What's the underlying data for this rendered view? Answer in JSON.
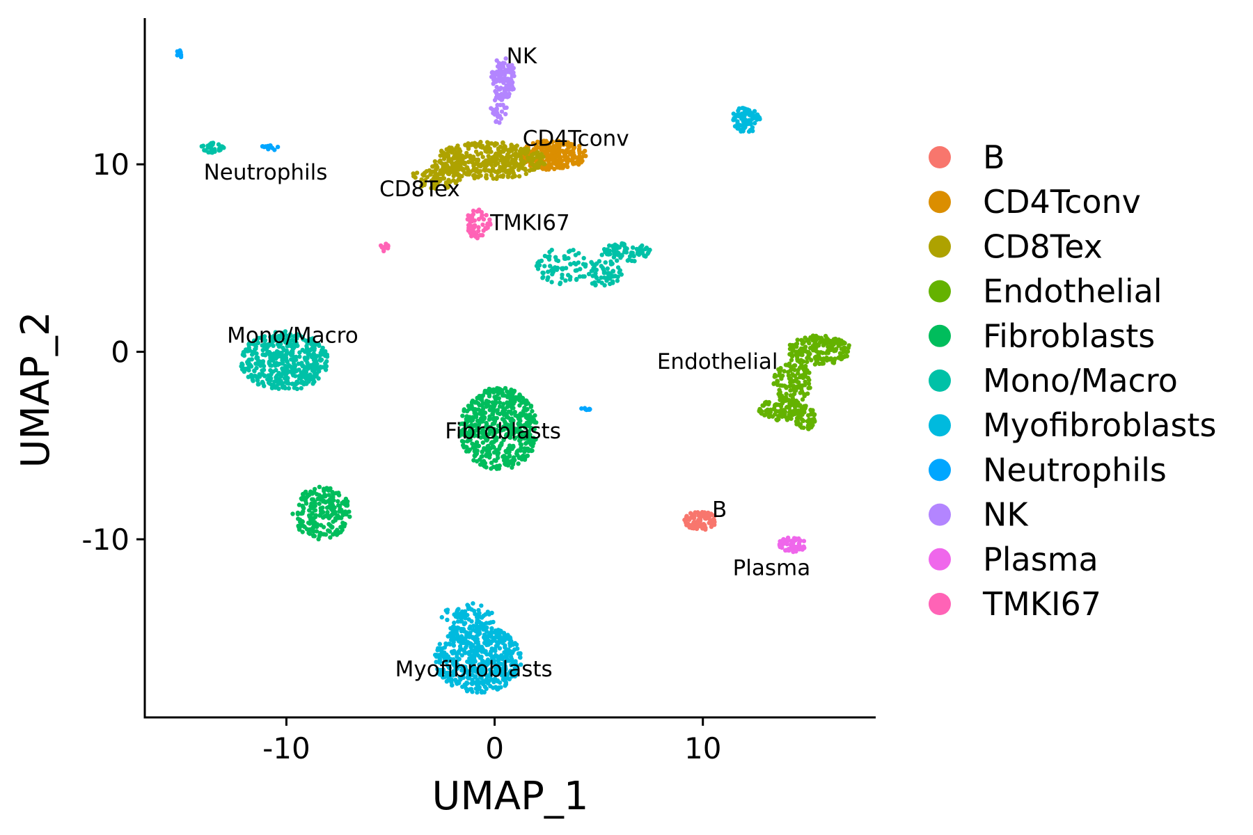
{
  "chart_data": {
    "type": "scatter",
    "title": "",
    "xlabel": "UMAP_1",
    "ylabel": "UMAP_2",
    "xlim": [
      -16.8,
      18.3
    ],
    "ylim": [
      -19.5,
      17.8
    ],
    "xticks": [
      -10,
      0,
      10
    ],
    "yticks": [
      -10,
      0,
      10
    ],
    "xtick_labels": [
      "-10",
      "0",
      "10"
    ],
    "ytick_labels": [
      "-10",
      "0",
      "10"
    ],
    "grid": false,
    "legend_placement": "right",
    "series": [
      {
        "name": "B",
        "color": "#F8766D",
        "clusters": [
          {
            "x": 9.9,
            "y": -9.0,
            "rx": 0.8,
            "ry": 0.5,
            "n": 90
          }
        ]
      },
      {
        "name": "CD4Tconv",
        "color": "#DB8E00",
        "clusters": [
          {
            "x": 2.8,
            "y": 10.5,
            "rx": 1.6,
            "ry": 0.8,
            "n": 260
          }
        ]
      },
      {
        "name": "CD8Tex",
        "color": "#AEA200",
        "clusters": [
          {
            "x": -0.3,
            "y": 10.2,
            "rx": 2.8,
            "ry": 1.0,
            "n": 420
          },
          {
            "x": -2.8,
            "y": 9.3,
            "rx": 1.2,
            "ry": 0.6,
            "n": 80
          }
        ]
      },
      {
        "name": "Endothelial",
        "color": "#64B200",
        "clusters": [
          {
            "x": 15.6,
            "y": 0.1,
            "rx": 1.5,
            "ry": 0.8,
            "n": 180
          },
          {
            "x": 14.3,
            "y": -1.6,
            "rx": 0.9,
            "ry": 1.2,
            "n": 120
          },
          {
            "x": 13.8,
            "y": -3.1,
            "rx": 1.1,
            "ry": 0.6,
            "n": 100
          },
          {
            "x": 14.9,
            "y": -3.5,
            "rx": 0.5,
            "ry": 0.7,
            "n": 50
          }
        ]
      },
      {
        "name": "Fibroblasts",
        "color": "#00BD5C",
        "clusters": [
          {
            "x": 0.2,
            "y": -4.1,
            "rx": 1.9,
            "ry": 2.2,
            "n": 550
          },
          {
            "x": -8.3,
            "y": -8.6,
            "rx": 1.4,
            "ry": 1.4,
            "n": 230
          }
        ]
      },
      {
        "name": "Mono/Macro",
        "color": "#00C1A7",
        "clusters": [
          {
            "x": -10.1,
            "y": -0.5,
            "rx": 2.1,
            "ry": 1.6,
            "n": 450
          },
          {
            "x": -13.5,
            "y": 10.9,
            "rx": 0.6,
            "ry": 0.3,
            "n": 30
          },
          {
            "x": 3.2,
            "y": 4.6,
            "rx": 1.2,
            "ry": 1.0,
            "n": 70
          },
          {
            "x": 5.2,
            "y": 4.2,
            "rx": 1.0,
            "ry": 0.7,
            "n": 60
          },
          {
            "x": 6.3,
            "y": 5.3,
            "rx": 1.2,
            "ry": 0.5,
            "n": 70
          }
        ]
      },
      {
        "name": "Myofibroblasts",
        "color": "#00BADE",
        "clusters": [
          {
            "x": -0.8,
            "y": -16.4,
            "rx": 2.1,
            "ry": 1.8,
            "n": 520
          },
          {
            "x": -1.3,
            "y": -14.2,
            "rx": 1.3,
            "ry": 0.8,
            "n": 80
          },
          {
            "x": 12.1,
            "y": 12.4,
            "rx": 0.7,
            "ry": 0.7,
            "n": 80
          }
        ]
      },
      {
        "name": "Neutrophils",
        "color": "#00A6FF",
        "clusters": [
          {
            "x": -15.1,
            "y": 15.9,
            "rx": 0.2,
            "ry": 0.2,
            "n": 8
          },
          {
            "x": -10.8,
            "y": 10.9,
            "rx": 0.5,
            "ry": 0.15,
            "n": 14
          },
          {
            "x": 4.4,
            "y": -3.0,
            "rx": 0.3,
            "ry": 0.12,
            "n": 8
          }
        ]
      },
      {
        "name": "NK",
        "color": "#B385FF",
        "clusters": [
          {
            "x": 0.4,
            "y": 14.6,
            "rx": 0.6,
            "ry": 1.1,
            "n": 110
          },
          {
            "x": 0.2,
            "y": 13.0,
            "rx": 0.4,
            "ry": 0.8,
            "n": 40
          }
        ]
      },
      {
        "name": "Plasma",
        "color": "#EF67EB",
        "clusters": [
          {
            "x": 14.3,
            "y": -10.3,
            "rx": 0.7,
            "ry": 0.4,
            "n": 60
          }
        ]
      },
      {
        "name": "TMKI67",
        "color": "#FF63B6",
        "clusters": [
          {
            "x": -0.8,
            "y": 6.8,
            "rx": 0.6,
            "ry": 0.8,
            "n": 60
          },
          {
            "x": -5.3,
            "y": 5.6,
            "rx": 0.2,
            "ry": 0.25,
            "n": 12
          }
        ]
      }
    ],
    "annotations": [
      {
        "text": "NK",
        "x": 1.3,
        "y": 15.8
      },
      {
        "text": "CD4Tconv",
        "x": 3.9,
        "y": 11.4
      },
      {
        "text": "Neutrophils",
        "x": -11.0,
        "y": 9.6
      },
      {
        "text": "CD8Tex",
        "x": -3.6,
        "y": 8.7
      },
      {
        "text": "TMKI67",
        "x": 1.7,
        "y": 6.9
      },
      {
        "text": "Mono/Macro",
        "x": -9.7,
        "y": 0.9
      },
      {
        "text": "Endothelial",
        "x": 10.7,
        "y": -0.5
      },
      {
        "text": "Fibroblasts",
        "x": 0.4,
        "y": -4.2
      },
      {
        "text": "B",
        "x": 10.8,
        "y": -8.4
      },
      {
        "text": "Plasma",
        "x": 13.3,
        "y": -11.5
      },
      {
        "text": "Myofibroblasts",
        "x": -1.0,
        "y": -16.9
      }
    ]
  }
}
